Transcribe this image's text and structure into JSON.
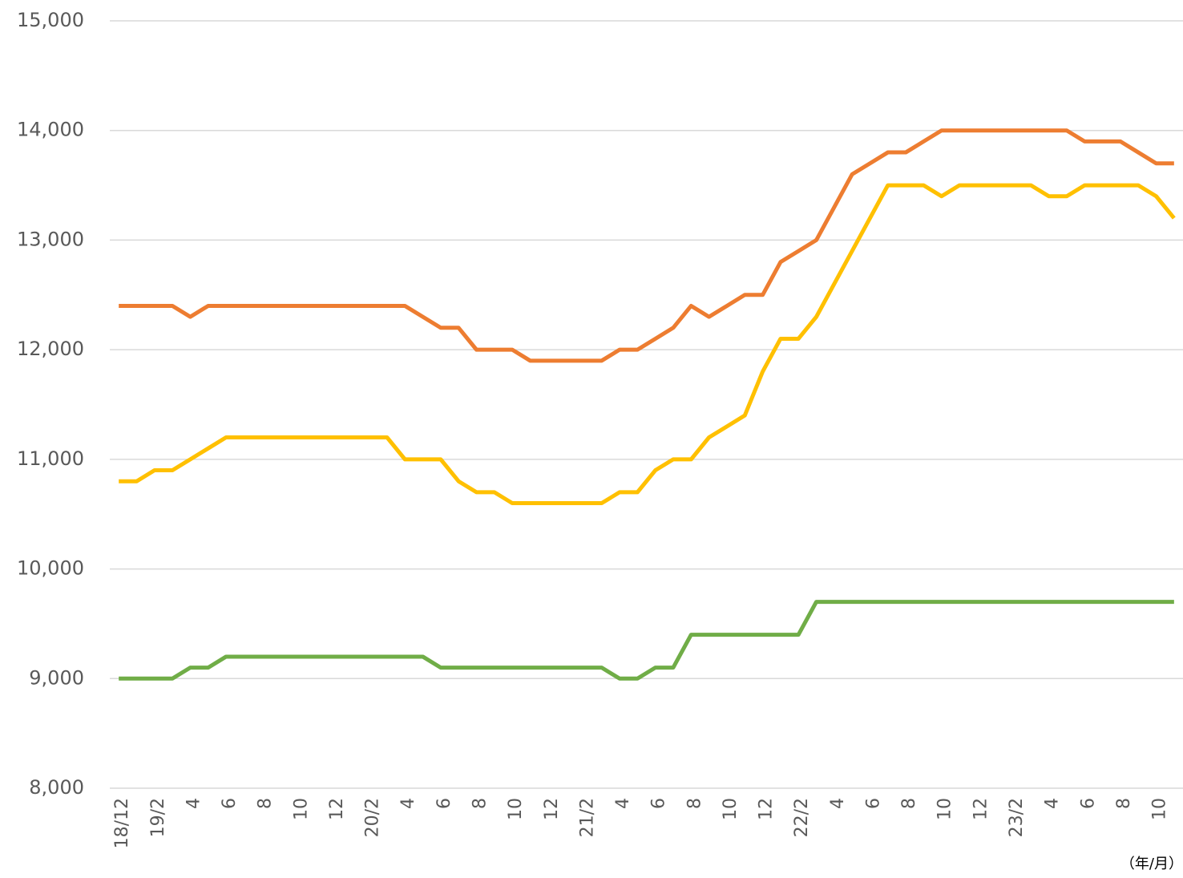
{
  "chart_data": {
    "type": "line",
    "x_label": "（年/月）",
    "categories": [
      "18/12",
      null,
      "19/2",
      null,
      "4",
      null,
      "6",
      null,
      "8",
      null,
      "10",
      null,
      "12",
      null,
      "20/2",
      null,
      "4",
      null,
      "6",
      null,
      "8",
      null,
      "10",
      null,
      "12",
      null,
      "21/2",
      null,
      "4",
      null,
      "6",
      null,
      "8",
      null,
      "10",
      null,
      "12",
      null,
      "22/2",
      null,
      "4",
      null,
      "6",
      null,
      "8",
      null,
      "10",
      null,
      "12",
      null,
      "23/2",
      null,
      "4",
      null,
      "6",
      null,
      "8",
      null,
      "10",
      null
    ],
    "series": [
      {
        "color": "#ED7D31",
        "values": [
          12400,
          12400,
          12400,
          12400,
          12300,
          12400,
          12400,
          12400,
          12400,
          12400,
          12400,
          12400,
          12400,
          12400,
          12400,
          12400,
          12400,
          12300,
          12200,
          12200,
          12000,
          12000,
          12000,
          11900,
          11900,
          11900,
          11900,
          11900,
          12000,
          12000,
          12100,
          12200,
          12400,
          12300,
          12400,
          12500,
          12500,
          12800,
          12900,
          13000,
          13300,
          13600,
          13700,
          13800,
          13800,
          13900,
          14000,
          14000,
          14000,
          14000,
          14000,
          14000,
          14000,
          14000,
          13900,
          13900,
          13900,
          13800,
          13700,
          13700
        ]
      },
      {
        "color": "#FFC000",
        "values": [
          10800,
          10800,
          10900,
          10900,
          11000,
          11100,
          11200,
          11200,
          11200,
          11200,
          11200,
          11200,
          11200,
          11200,
          11200,
          11200,
          11000,
          11000,
          11000,
          10800,
          10700,
          10700,
          10600,
          10600,
          10600,
          10600,
          10600,
          10600,
          10700,
          10700,
          10900,
          11000,
          11000,
          11200,
          11300,
          11400,
          11800,
          12100,
          12100,
          12300,
          12600,
          12900,
          13200,
          13500,
          13500,
          13500,
          13400,
          13500,
          13500,
          13500,
          13500,
          13500,
          13400,
          13400,
          13500,
          13500,
          13500,
          13500,
          13400,
          13200
        ]
      },
      {
        "color": "#70AD47",
        "values": [
          9000,
          9000,
          9000,
          9000,
          9100,
          9100,
          9200,
          9200,
          9200,
          9200,
          9200,
          9200,
          9200,
          9200,
          9200,
          9200,
          9200,
          9200,
          9100,
          9100,
          9100,
          9100,
          9100,
          9100,
          9100,
          9100,
          9100,
          9100,
          9000,
          9000,
          9100,
          9100,
          9400,
          9400,
          9400,
          9400,
          9400,
          9400,
          9400,
          9700,
          9700,
          9700,
          9700,
          9700,
          9700,
          9700,
          9700,
          9700,
          9700,
          9700,
          9700,
          9700,
          9700,
          9700,
          9700,
          9700,
          9700,
          9700,
          9700,
          9700
        ]
      }
    ],
    "ylim": [
      8000,
      15000
    ],
    "yticks": [
      {
        "value": 8000,
        "label": "8,000"
      },
      {
        "value": 9000,
        "label": "9,000"
      },
      {
        "value": 10000,
        "label": "10,000"
      },
      {
        "value": 11000,
        "label": "11,000"
      },
      {
        "value": 12000,
        "label": "12,000"
      },
      {
        "value": 13000,
        "label": "13,000"
      },
      {
        "value": 14000,
        "label": "14,000"
      },
      {
        "value": 15000,
        "label": "15,000"
      }
    ],
    "grid": true
  }
}
